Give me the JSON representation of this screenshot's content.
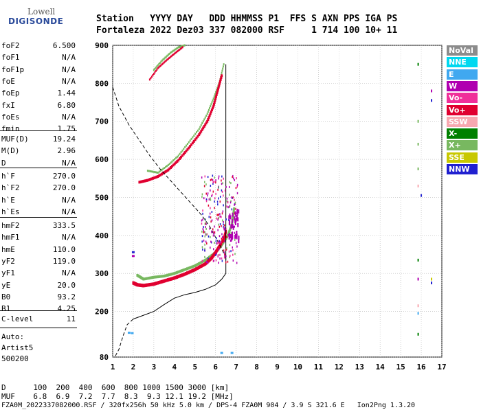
{
  "logo": {
    "line1": "Lowell",
    "line2": "DIGISONDE"
  },
  "header": {
    "row1": "Station   YYYY DAY   DDD HHMMSS P1  FFS S AXN PPS IGA PS",
    "row2": "Fortaleza 2022 Dez03 337 082000 RSF     1 714 100 10+ 11"
  },
  "params_group1": [
    {
      "name": "foF2",
      "value": "6.500"
    },
    {
      "name": "foF1",
      "value": "N/A"
    },
    {
      "name": "foF1p",
      "value": "N/A"
    },
    {
      "name": "foE",
      "value": "N/A"
    },
    {
      "name": "foEp",
      "value": "1.44"
    },
    {
      "name": "fxI",
      "value": "6.80"
    },
    {
      "name": "foEs",
      "value": "N/A"
    },
    {
      "name": "fmin",
      "value": "1.75"
    }
  ],
  "params_group2": [
    {
      "name": "MUF(D)",
      "value": "19.24"
    },
    {
      "name": "M(D)",
      "value": "2.96"
    },
    {
      "name": "D",
      "value": "N/A"
    }
  ],
  "params_group3": [
    {
      "name": "h`F",
      "value": "270.0"
    },
    {
      "name": "h`F2",
      "value": "270.0"
    },
    {
      "name": "h`E",
      "value": "N/A"
    },
    {
      "name": "h`Es",
      "value": "N/A"
    }
  ],
  "params_group4": [
    {
      "name": "hmF2",
      "value": "333.5"
    },
    {
      "name": "hmF1",
      "value": "N/A"
    },
    {
      "name": "hmE",
      "value": "110.0"
    },
    {
      "name": "yF2",
      "value": "119.0"
    },
    {
      "name": "yF1",
      "value": "N/A"
    },
    {
      "name": "yE",
      "value": "20.0"
    },
    {
      "name": "B0",
      "value": "93.2"
    },
    {
      "name": "B1",
      "value": "4.25"
    }
  ],
  "params_group5": [
    {
      "name": "C-level",
      "value": "11"
    }
  ],
  "auto": {
    "line1": "Auto:",
    "line2": "Artist5",
    "line3": "500200"
  },
  "legend": [
    {
      "label": "NoVal",
      "color": "#8c8c8c"
    },
    {
      "label": "NNE",
      "color": "#00d8f0"
    },
    {
      "label": "E",
      "color": "#40a8f0"
    },
    {
      "label": "W",
      "color": "#b000b0"
    },
    {
      "label": "Vo-",
      "color": "#f0309a"
    },
    {
      "label": "Vo+",
      "color": "#e00030"
    },
    {
      "label": "SSW",
      "color": "#f8a8b0"
    },
    {
      "label": "X-",
      "color": "#008000"
    },
    {
      "label": "X+",
      "color": "#78b860"
    },
    {
      "label": "SSE",
      "color": "#c8c800"
    },
    {
      "label": "NNW",
      "color": "#2020d0"
    }
  ],
  "footer": {
    "d_row": "D      100  200  400  600  800 1000 1500 3000 [km]",
    "muf_row": "MUF    6.8  6.9  7.2  7.7  8.3  9.3 12.1 19.2 [MHz]",
    "file_row": "FZA0M_2022337082000.RSF / 320fx256h 50 kHz 5.0 km / DPS-4 FZA0M 904 / 3.9 S 321.6 E   Ion2Png 1.3.20"
  },
  "chart_data": {
    "type": "scatter",
    "x_ticks": [
      "1",
      "2",
      "3",
      "4",
      "5",
      "6",
      "7",
      "8",
      "9",
      "10",
      "11",
      "12",
      "13",
      "14",
      "15",
      "16",
      "17"
    ],
    "y_ticks": [
      "80",
      "200",
      "300",
      "400",
      "500",
      "600",
      "700",
      "800",
      "900"
    ],
    "xlim": [
      1,
      17
    ],
    "ylim": [
      80,
      900
    ],
    "grid": true,
    "profile_curve": [
      [
        1.0,
        790
      ],
      [
        1.3,
        740
      ],
      [
        1.8,
        690
      ],
      [
        2.3,
        650
      ],
      [
        2.8,
        610
      ],
      [
        3.3,
        575
      ],
      [
        3.8,
        545
      ],
      [
        4.3,
        515
      ],
      [
        4.8,
        485
      ],
      [
        5.3,
        455
      ],
      [
        5.7,
        425
      ],
      [
        6.0,
        395
      ],
      [
        6.3,
        365
      ],
      [
        6.5,
        340
      ],
      [
        6.5,
        300
      ],
      [
        6.3,
        285
      ],
      [
        6.0,
        270
      ],
      [
        5.5,
        258
      ],
      [
        5.0,
        250
      ],
      [
        4.5,
        244
      ],
      [
        4.0,
        235
      ],
      [
        3.5,
        218
      ],
      [
        3.0,
        200
      ],
      [
        2.5,
        190
      ],
      [
        2.0,
        180
      ],
      [
        1.7,
        165
      ],
      [
        1.5,
        135
      ],
      [
        1.3,
        100
      ],
      [
        1.1,
        80
      ]
    ],
    "o_trace_f2": [
      [
        2.0,
        275
      ],
      [
        2.2,
        270
      ],
      [
        2.5,
        268
      ],
      [
        3.0,
        272
      ],
      [
        3.5,
        280
      ],
      [
        4.0,
        288
      ],
      [
        4.5,
        298
      ],
      [
        5.0,
        310
      ],
      [
        5.5,
        325
      ],
      [
        5.8,
        340
      ],
      [
        6.0,
        355
      ],
      [
        6.2,
        372
      ],
      [
        6.4,
        390
      ],
      [
        6.5,
        410
      ]
    ],
    "x_trace_f2": [
      [
        2.2,
        295
      ],
      [
        2.5,
        285
      ],
      [
        3.0,
        290
      ],
      [
        3.5,
        293
      ],
      [
        4.0,
        300
      ],
      [
        4.5,
        310
      ],
      [
        5.0,
        320
      ],
      [
        5.5,
        335
      ],
      [
        6.0,
        355
      ],
      [
        6.3,
        375
      ],
      [
        6.6,
        400
      ],
      [
        6.8,
        430
      ],
      [
        6.9,
        470
      ]
    ],
    "o_trace_2hop": [
      [
        2.3,
        540
      ],
      [
        2.7,
        545
      ],
      [
        3.2,
        555
      ],
      [
        3.7,
        572
      ],
      [
        4.2,
        598
      ],
      [
        4.7,
        630
      ],
      [
        5.2,
        665
      ],
      [
        5.6,
        700
      ],
      [
        5.9,
        740
      ],
      [
        6.1,
        780
      ],
      [
        6.3,
        820
      ]
    ],
    "x_trace_2hop": [
      [
        2.7,
        570
      ],
      [
        3.2,
        565
      ],
      [
        3.7,
        585
      ],
      [
        4.2,
        610
      ],
      [
        4.7,
        645
      ],
      [
        5.2,
        680
      ],
      [
        5.6,
        720
      ],
      [
        5.9,
        760
      ],
      [
        6.2,
        805
      ],
      [
        6.4,
        850
      ]
    ],
    "o_trace_3hop": [
      [
        2.8,
        810
      ],
      [
        3.2,
        840
      ],
      [
        3.6,
        860
      ],
      [
        4.0,
        878
      ],
      [
        4.4,
        895
      ]
    ],
    "x_trace_3hop": [
      [
        3.0,
        835
      ],
      [
        3.4,
        860
      ],
      [
        3.8,
        880
      ],
      [
        4.2,
        895
      ],
      [
        4.5,
        900
      ]
    ],
    "vertical_line_x": 6.5
  }
}
